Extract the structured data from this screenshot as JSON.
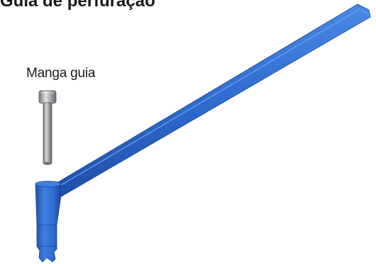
{
  "header": {
    "title": "Guia de perfuração"
  },
  "labels": {
    "guide_sleeve": "Manga guia"
  },
  "colors": {
    "guide_handle": "#2f6bd0",
    "guide_sleeve": "#8f959c",
    "text": "#1a1a1a"
  }
}
